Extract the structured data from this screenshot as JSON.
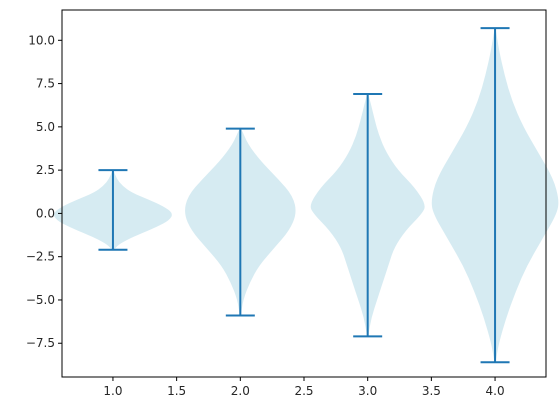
{
  "chart_data": {
    "type": "violin",
    "title": "",
    "xlabel": "",
    "ylabel": "",
    "xlim": [
      0.6,
      4.4
    ],
    "ylim": [
      -9.45,
      11.75
    ],
    "grid": false,
    "xticks": [
      "1.0",
      "1.5",
      "2.0",
      "2.5",
      "3.0",
      "3.5",
      "4.0"
    ],
    "xtick_values": [
      1.0,
      1.5,
      2.0,
      2.5,
      3.0,
      3.5,
      4.0
    ],
    "yticks": [
      "−7.5",
      "−5.0",
      "−2.5",
      "0.0",
      "2.5",
      "5.0",
      "7.5",
      "10.0"
    ],
    "ytick_values": [
      -7.5,
      -5.0,
      -2.5,
      0.0,
      2.5,
      5.0,
      7.5,
      10.0
    ],
    "colors": {
      "body": "#add8e6",
      "lines": "#1f77b4"
    },
    "violins": [
      {
        "position": 1.0,
        "min": -2.1,
        "max": 2.5,
        "profile": [
          [
            -2.1,
            0.005
          ],
          [
            -1.8,
            0.03
          ],
          [
            -1.5,
            0.08
          ],
          [
            -1.2,
            0.14
          ],
          [
            -0.8,
            0.23
          ],
          [
            -0.4,
            0.3
          ],
          [
            0.0,
            0.32
          ],
          [
            0.4,
            0.27
          ],
          [
            0.8,
            0.19
          ],
          [
            1.2,
            0.1
          ],
          [
            1.6,
            0.05
          ],
          [
            2.0,
            0.02
          ],
          [
            2.5,
            0.003
          ]
        ]
      },
      {
        "position": 2.0,
        "min": -5.9,
        "max": 4.9,
        "profile": [
          [
            -5.9,
            0.003
          ],
          [
            -5.0,
            0.015
          ],
          [
            -4.0,
            0.05
          ],
          [
            -3.0,
            0.1
          ],
          [
            -2.0,
            0.18
          ],
          [
            -1.0,
            0.26
          ],
          [
            0.0,
            0.3
          ],
          [
            1.0,
            0.28
          ],
          [
            2.0,
            0.2
          ],
          [
            3.0,
            0.11
          ],
          [
            4.0,
            0.04
          ],
          [
            4.9,
            0.005
          ]
        ]
      },
      {
        "position": 3.0,
        "min": -7.1,
        "max": 6.9,
        "profile": [
          [
            -7.1,
            0.003
          ],
          [
            -6.0,
            0.02
          ],
          [
            -5.0,
            0.05
          ],
          [
            -4.0,
            0.08
          ],
          [
            -3.0,
            0.11
          ],
          [
            -2.0,
            0.14
          ],
          [
            -1.0,
            0.2
          ],
          [
            0.0,
            0.29
          ],
          [
            0.5,
            0.31
          ],
          [
            1.5,
            0.25
          ],
          [
            2.5,
            0.16
          ],
          [
            3.5,
            0.1
          ],
          [
            4.5,
            0.06
          ],
          [
            5.5,
            0.035
          ],
          [
            6.9,
            0.004
          ]
        ]
      },
      {
        "position": 4.0,
        "min": -8.6,
        "max": 10.7,
        "profile": [
          [
            -8.6,
            0.003
          ],
          [
            -7.5,
            0.02
          ],
          [
            -6.0,
            0.06
          ],
          [
            -4.5,
            0.11
          ],
          [
            -3.0,
            0.17
          ],
          [
            -1.5,
            0.25
          ],
          [
            0.0,
            0.33
          ],
          [
            0.8,
            0.34
          ],
          [
            2.0,
            0.31
          ],
          [
            3.5,
            0.23
          ],
          [
            5.0,
            0.15
          ],
          [
            6.5,
            0.09
          ],
          [
            8.0,
            0.05
          ],
          [
            9.5,
            0.02
          ],
          [
            10.7,
            0.003
          ]
        ]
      }
    ]
  }
}
